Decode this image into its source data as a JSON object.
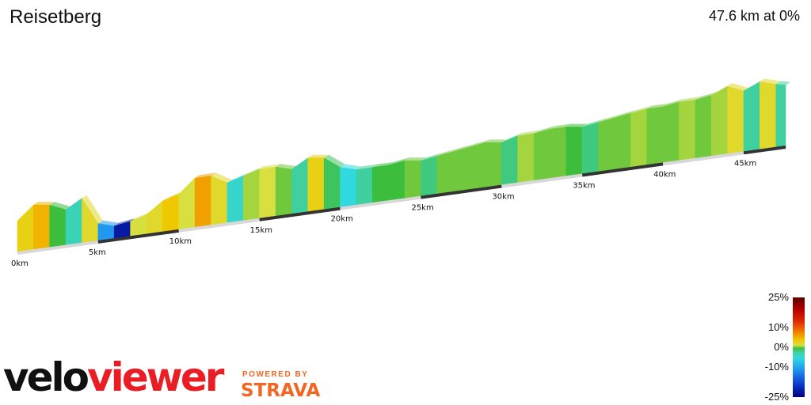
{
  "title": "Reisetberg",
  "summary": "47.6 km at 0%",
  "chart_data": {
    "type": "area",
    "title": "Reisetberg",
    "total_distance_km": 47.6,
    "average_gradient_pct": 0,
    "x_tick_labels": [
      "0km",
      "5km",
      "10km",
      "15km",
      "20km",
      "25km",
      "30km",
      "35km",
      "40km",
      "45km"
    ],
    "x_ticks_km": [
      0,
      5,
      10,
      15,
      20,
      25,
      30,
      35,
      40,
      45
    ],
    "relative_elevation_profile": {
      "km": [
        0,
        1,
        2,
        3,
        4,
        5,
        6,
        7,
        8,
        9,
        10,
        11,
        12,
        13,
        14,
        15,
        16,
        17,
        18,
        19,
        20,
        21,
        22,
        23,
        24,
        25,
        26,
        27,
        28,
        29,
        30,
        31,
        32,
        33,
        34,
        35,
        36,
        37,
        38,
        39,
        40,
        41,
        42,
        43,
        44,
        45,
        46,
        47,
        47.6
      ],
      "elevation": [
        14,
        20,
        19,
        16,
        20,
        8,
        6,
        7,
        9,
        14,
        16,
        22,
        22,
        18,
        20,
        22,
        22,
        20,
        24,
        23,
        18,
        16,
        16,
        16,
        17,
        16,
        17,
        18,
        19,
        20,
        19,
        21,
        21,
        22,
        22,
        21,
        22,
        23,
        24,
        25,
        25,
        26,
        26,
        27,
        30,
        27,
        30,
        28,
        27
      ]
    },
    "gradient_pct_by_km": [
      5,
      7,
      0,
      -4,
      4,
      -10,
      -22,
      3,
      4,
      6,
      3,
      8,
      4,
      -5,
      2,
      3,
      1,
      -3,
      5,
      -1,
      -6,
      -3,
      0,
      0,
      1,
      -2,
      1,
      1,
      1,
      1,
      -2,
      2,
      1,
      1,
      0,
      -2,
      1,
      1,
      2,
      1,
      1,
      2,
      1,
      2,
      4,
      -3,
      4,
      -3,
      -3
    ],
    "legend": {
      "placement": "bottom-right",
      "tick_labels": [
        "25%",
        "10%",
        "0%",
        "-10%",
        "-25%"
      ],
      "tick_values": [
        25,
        10,
        0,
        -10,
        -25
      ]
    }
  },
  "branding": {
    "logo_velo": "velo",
    "logo_viewer": "viewer",
    "powered_by": "POWERED BY",
    "strava": "STRAVA"
  },
  "colors": {
    "accent_red": "#ea1d24",
    "strava_orange": "#f26522",
    "road_light": "#d8d8d8",
    "road_dark": "#333333"
  }
}
